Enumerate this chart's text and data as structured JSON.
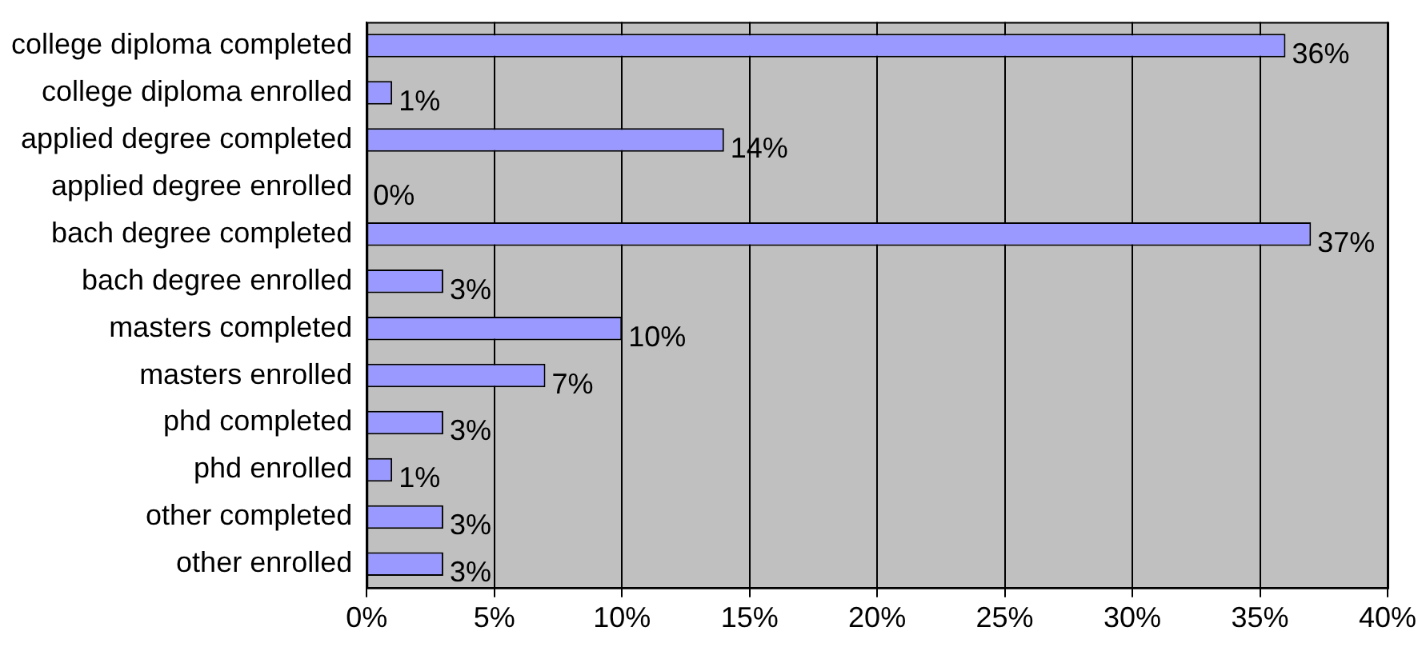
{
  "chart_data": {
    "type": "bar",
    "orientation": "horizontal",
    "categories": [
      "college diploma completed",
      "college diploma enrolled",
      "applied degree completed",
      "applied degree enrolled",
      "bach degree completed",
      "bach degree enrolled",
      "masters completed",
      "masters enrolled",
      "phd completed",
      "phd enrolled",
      "other completed",
      "other enrolled"
    ],
    "values": [
      36,
      1,
      14,
      0,
      37,
      3,
      10,
      7,
      3,
      1,
      3,
      3
    ],
    "value_labels": [
      "36%",
      "1%",
      "14%",
      "0%",
      "37%",
      "3%",
      "10%",
      "7%",
      "3%",
      "1%",
      "3%",
      "3%"
    ],
    "color": "#9999ff",
    "xlim": [
      0,
      40
    ],
    "xticks": [
      {
        "value": 0,
        "label": "0%"
      },
      {
        "value": 5,
        "label": "5%"
      },
      {
        "value": 10,
        "label": "10%"
      },
      {
        "value": 15,
        "label": "15%"
      },
      {
        "value": 20,
        "label": "20%"
      },
      {
        "value": 25,
        "label": "25%"
      },
      {
        "value": 30,
        "label": "30%"
      },
      {
        "value": 35,
        "label": "35%"
      },
      {
        "value": 40,
        "label": "40%"
      }
    ],
    "grid": "x",
    "legend": false
  }
}
